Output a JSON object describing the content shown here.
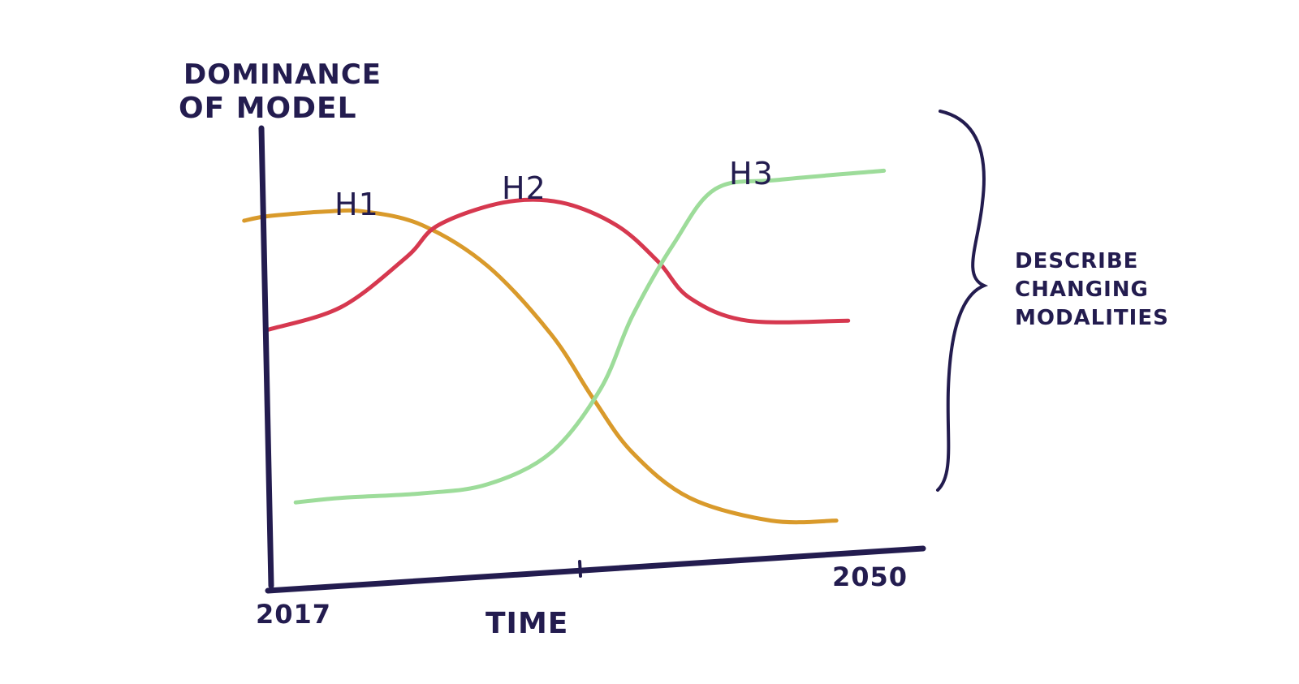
{
  "chart_data": {
    "type": "line",
    "title": "",
    "ylabel": "DOMINANCE OF MODEL",
    "ylabel_lines": [
      "DOMINANCE",
      "OF MODEL"
    ],
    "xlabel": "TIME",
    "x_tick_labels": [
      "2017",
      "2050"
    ],
    "xlim": [
      2017,
      2050
    ],
    "ylim": [
      0,
      1
    ],
    "grid": false,
    "annotation": {
      "text": "DESCRIBE CHANGING MODALITIES",
      "lines": [
        "DESCRIBE",
        "CHANGING",
        "MODALITIES"
      ]
    },
    "colors": {
      "axis": "#231c4f",
      "H1": "#d99a2b",
      "H2": "#d6384f",
      "H3": "#9ddc9a"
    },
    "series": [
      {
        "name": "H1",
        "color": "#d99a2b",
        "x": [
          2015.8,
          2017,
          2019.9,
          2021.9,
          2024.8,
          2028.1,
          2031.3,
          2033.4,
          2035.4,
          2038.3,
          2042.4,
          2045.7
        ],
        "y": [
          0.8,
          0.81,
          0.82,
          0.82,
          0.79,
          0.7,
          0.55,
          0.41,
          0.29,
          0.19,
          0.14,
          0.14
        ]
      },
      {
        "name": "H2",
        "color": "#d6384f",
        "x": [
          2017,
          2020.7,
          2024,
          2025.6,
          2028.9,
          2031.8,
          2034.6,
          2036.7,
          2038.3,
          2041.2,
          2046.3
        ],
        "y": [
          0.56,
          0.61,
          0.72,
          0.79,
          0.84,
          0.84,
          0.79,
          0.71,
          0.63,
          0.58,
          0.58
        ]
      },
      {
        "name": "H3",
        "color": "#9ddc9a",
        "x": [
          2018.4,
          2020.7,
          2024.8,
          2028.1,
          2031.3,
          2033.8,
          2035.4,
          2037.5,
          2039.6,
          2042.8,
          2048.1
        ],
        "y": [
          0.18,
          0.19,
          0.2,
          0.22,
          0.29,
          0.43,
          0.59,
          0.75,
          0.87,
          0.89,
          0.91
        ]
      }
    ]
  }
}
